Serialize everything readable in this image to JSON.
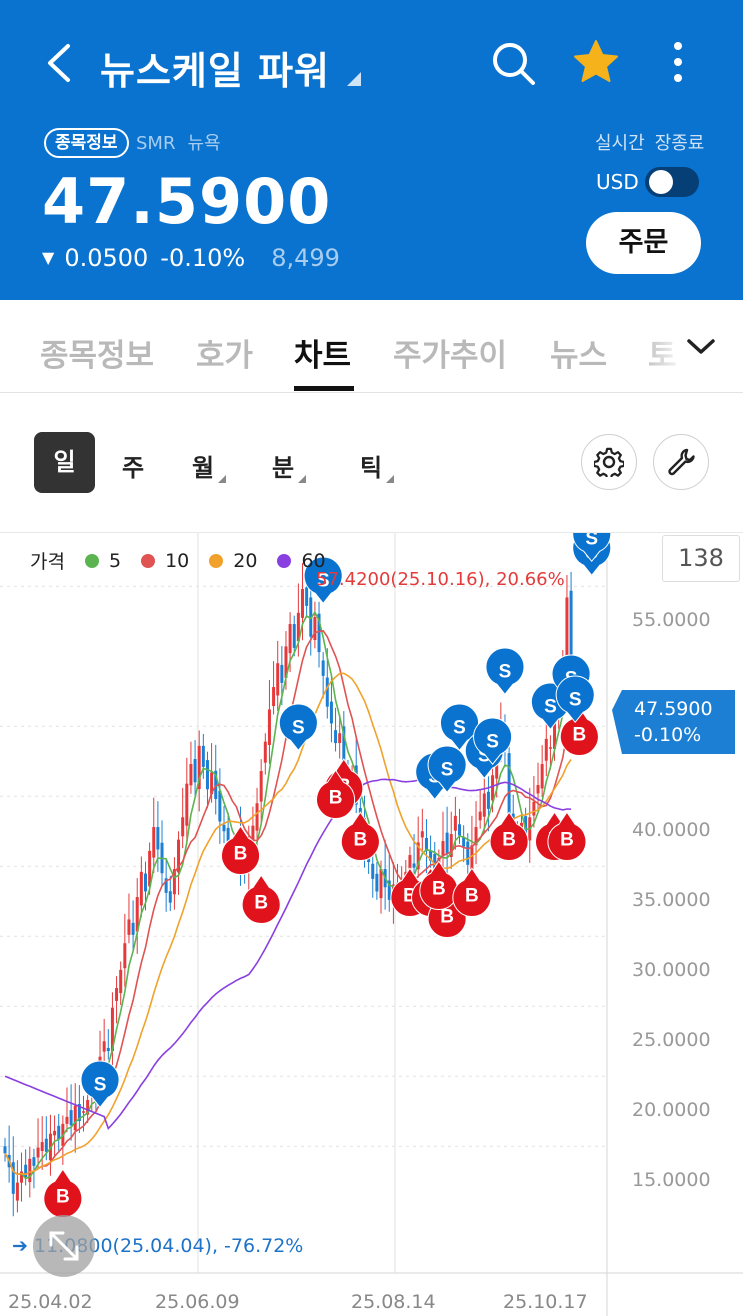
{
  "header": {
    "title": "뉴스케일 파워",
    "badge": "종목정보",
    "ticker": "SMR",
    "exchange": "뉴욕",
    "price": "47.5900",
    "change": "0.0500",
    "change_pct": "-0.10%",
    "volume": "8,499",
    "realtime": "실시간",
    "session": "장종료",
    "usd_label": "USD",
    "usd_on": false,
    "order_button": "주문",
    "colors": {
      "bg": "#0a73cf",
      "star": "#f6b21a"
    }
  },
  "tabs": [
    {
      "label": "종목정보",
      "active": false
    },
    {
      "label": "호가",
      "active": false
    },
    {
      "label": "차트",
      "active": true
    },
    {
      "label": "주가추이",
      "active": false
    },
    {
      "label": "뉴스",
      "active": false
    },
    {
      "label": "토",
      "active": false
    }
  ],
  "periods": [
    {
      "label": "일",
      "active": true,
      "has_menu": false
    },
    {
      "label": "주",
      "active": false,
      "has_menu": false
    },
    {
      "label": "월",
      "active": false,
      "has_menu": true
    },
    {
      "label": "분",
      "active": false,
      "has_menu": true
    },
    {
      "label": "틱",
      "active": false,
      "has_menu": true
    }
  ],
  "icons": {
    "settings": "gear-icon",
    "tools": "wrench-icon",
    "back": "chevron-left-icon",
    "search": "search-icon",
    "favorite": "star-icon",
    "more": "more-vertical-icon",
    "expand": "chevron-down-icon"
  },
  "chart": {
    "legend": {
      "price_label": "가격",
      "ma": [
        {
          "label": "5",
          "color": "#5bb450"
        },
        {
          "label": "10",
          "color": "#e05353"
        },
        {
          "label": "20",
          "color": "#f0a22c"
        },
        {
          "label": "60",
          "color": "#8a3fe0"
        }
      ]
    },
    "candle_count": "138",
    "max_label": "57.4200(25.10.16), 20.66%",
    "min_label": "11.0800(25.04.04), -76.72%",
    "current_price": "47.5900",
    "current_pct": "-0.10%",
    "colors": {
      "up": "#e5393b",
      "down": "#1c7fd4",
      "buy_marker": "#e0121c",
      "sell_marker": "#0a73cf"
    }
  },
  "chart_data": {
    "type": "candlestick",
    "y_ticks": [
      "55.0000",
      "40.0000",
      "35.0000",
      "30.0000",
      "25.0000",
      "20.0000",
      "15.0000"
    ],
    "x_ticks": [
      "25.04.02",
      "25.06.09",
      "25.08.14",
      "25.10.17"
    ],
    "ylim": [
      10,
      58.5
    ],
    "x_range": [
      0,
      138
    ],
    "x_tick_positions": [
      6,
      47,
      88,
      120
    ],
    "close": [
      14.5,
      13.5,
      11.6,
      12.4,
      13.2,
      12.8,
      14.1,
      13.6,
      14.9,
      15.3,
      14.6,
      15.9,
      16.1,
      15.5,
      16.6,
      17.1,
      16.5,
      17.9,
      16.8,
      17.5,
      18.3,
      19.6,
      18.9,
      21.4,
      22.5,
      21.8,
      24.9,
      26.3,
      27.6,
      29.5,
      31.2,
      30.1,
      32.8,
      34.6,
      33.2,
      36.1,
      37.8,
      36.2,
      34.5,
      33.1,
      32.4,
      34.8,
      36.9,
      38.5,
      40.9,
      42.3,
      41.0,
      43.6,
      42.1,
      40.5,
      41.7,
      39.8,
      38.2,
      37.5,
      36.4,
      35.9,
      36.8,
      35.2,
      34.6,
      36.3,
      37.9,
      39.5,
      41.8,
      43.9,
      46.2,
      47.8,
      49.5,
      48.1,
      50.7,
      52.3,
      50.6,
      53.1,
      54.8,
      53.6,
      51.4,
      52.8,
      50.3,
      48.6,
      46.4,
      45.2,
      43.8,
      44.5,
      42.1,
      40.3,
      41.6,
      39.4,
      38.2,
      36.5,
      35.3,
      34.1,
      33.2,
      34.8,
      33.5,
      32.6,
      33.7,
      32.4,
      33.9,
      34.6,
      35.8,
      34.9,
      36.7,
      37.5,
      36.1,
      35.4,
      34.2,
      35.6,
      36.8,
      35.9,
      37.3,
      38.6,
      37.2,
      36.4,
      35.1,
      36.5,
      37.8,
      38.9,
      40.2,
      39.1,
      41.5,
      42.8,
      44.6,
      43.2,
      38.4,
      37.6,
      36.9,
      38.1,
      37.2,
      38.5,
      39.6,
      40.8,
      42.3,
      44.1,
      43.5,
      45.8,
      47.2,
      48.6,
      54.2,
      47.59
    ],
    "markers": {
      "buy": [
        [
          14,
          11.5
        ],
        [
          57,
          36.0
        ],
        [
          62,
          32.5
        ],
        [
          82,
          40.8
        ],
        [
          80,
          40.0
        ],
        [
          86,
          37.0
        ],
        [
          98,
          33.0
        ],
        [
          103,
          33.0
        ],
        [
          107,
          31.5
        ],
        [
          105,
          33.5
        ],
        [
          113,
          33.0
        ],
        [
          122,
          37.0
        ],
        [
          133,
          37.0
        ],
        [
          136,
          37.0
        ],
        [
          139,
          44.5
        ]
      ],
      "sell": [
        [
          23,
          19.5
        ],
        [
          77,
          55.5
        ],
        [
          71,
          45.0
        ],
        [
          104,
          41.5
        ],
        [
          107,
          42.0
        ],
        [
          110,
          45.0
        ],
        [
          116,
          43.0
        ],
        [
          118,
          44.0
        ],
        [
          121,
          49.0
        ],
        [
          132,
          46.5
        ],
        [
          137,
          48.5
        ],
        [
          138,
          47.0
        ],
        [
          142,
          57.5
        ],
        [
          142,
          58.5
        ]
      ]
    }
  }
}
